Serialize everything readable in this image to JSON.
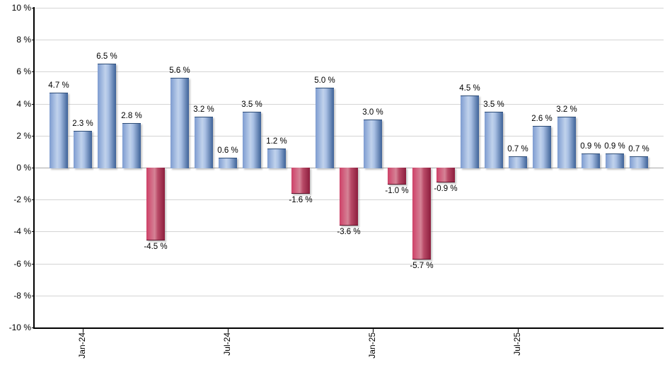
{
  "chart_data": {
    "type": "bar",
    "title": "",
    "xlabel": "",
    "ylabel": "",
    "ylim": [
      -10,
      10
    ],
    "grid": "on",
    "legend": null,
    "values": [
      4.7,
      2.3,
      6.5,
      2.8,
      -4.5,
      5.6,
      3.2,
      0.6,
      3.5,
      1.2,
      -1.6,
      5.0,
      -3.6,
      3.0,
      -1.0,
      -5.7,
      -0.9,
      4.5,
      3.5,
      0.7,
      2.6,
      3.2,
      0.9,
      0.9,
      0.7
    ],
    "bar_labels": [
      "4.7 %",
      "2.3 %",
      "6.5 %",
      "2.8 %",
      "-4.5 %",
      "5.6 %",
      "3.2 %",
      "0.6 %",
      "3.5 %",
      "1.2 %",
      "-1.6 %",
      "5.0 %",
      "-3.6 %",
      "3.0 %",
      "-1.0 %",
      "-5.7 %",
      "-0.9 %",
      "4.5 %",
      "3.5 %",
      "0.7 %",
      "2.6 %",
      "3.2 %",
      "0.9 %",
      "0.9 %",
      "0.7 %"
    ],
    "y_ticks": [
      {
        "value": 10,
        "label": "10 %"
      },
      {
        "value": 8,
        "label": "8 %"
      },
      {
        "value": 6,
        "label": "6 %"
      },
      {
        "value": 4,
        "label": "4 %"
      },
      {
        "value": 2,
        "label": "2 %"
      },
      {
        "value": 0,
        "label": "0 %"
      },
      {
        "value": -2,
        "label": "-2 %"
      },
      {
        "value": -4,
        "label": "-4 %"
      },
      {
        "value": -6,
        "label": "-6 %"
      },
      {
        "value": -8,
        "label": "-8 %"
      },
      {
        "value": -10,
        "label": "-10 %"
      }
    ],
    "x_ticks": [
      {
        "label": "Jan-24",
        "bar_index": 1
      },
      {
        "label": "Jul-24",
        "bar_index": 7
      },
      {
        "label": "Jan-25",
        "bar_index": 13
      },
      {
        "label": "Jul-25",
        "bar_index": 19
      }
    ],
    "colors": {
      "positive_gradient": [
        "#7e9cd0",
        "#c0d2ec",
        "#a9c0e4",
        "#3e6298"
      ],
      "positive_border": "#2e4d77",
      "negative_gradient": [
        "#ce4168",
        "#d58396",
        "#b94a67",
        "#8c1e3e"
      ],
      "negative_border": "#5e132b",
      "gridline": "#d4d4d4",
      "zero_line": "#a8a8a8",
      "axis": "#000000",
      "label_text": "#000000"
    }
  }
}
